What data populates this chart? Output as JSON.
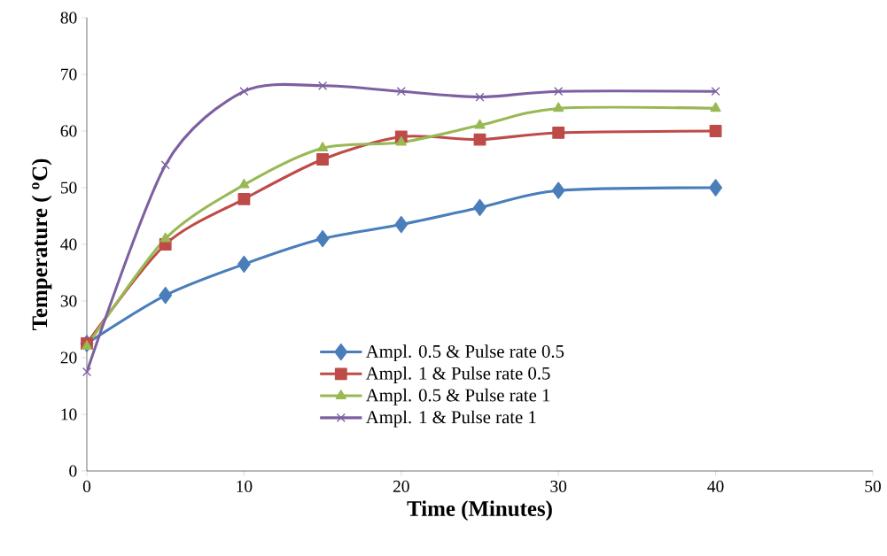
{
  "chart_data": {
    "type": "line",
    "xlabel": "Time (Minutes)",
    "ylabel": "Temperature ( $^{o}$C)",
    "x": [
      0,
      5,
      10,
      15,
      20,
      25,
      30,
      40
    ],
    "series": [
      {
        "name": "Ampl. 0.5 & Pulse rate 0.5",
        "color": "#4a7ebb",
        "marker": "diamond",
        "values": [
          22.5,
          31,
          36.5,
          41,
          43.5,
          46.5,
          49.5,
          50
        ]
      },
      {
        "name": "Ampl. 1 & Pulse rate 0.5",
        "color": "#be4b48",
        "marker": "square",
        "values": [
          22.5,
          40,
          48,
          55,
          59,
          58.5,
          59.7,
          60
        ]
      },
      {
        "name": "Ampl. 0.5 & Pulse rate 1",
        "color": "#98b954",
        "marker": "triangle",
        "values": [
          22,
          41,
          50.5,
          57,
          58,
          61,
          64,
          64
        ]
      },
      {
        "name": "Ampl. 1 & Pulse rate 1",
        "color": "#7d60a0",
        "marker": "cross",
        "values": [
          17.5,
          54,
          67,
          68,
          67,
          66,
          67,
          67
        ]
      }
    ],
    "xlim": [
      0,
      50
    ],
    "ylim": [
      0,
      80
    ],
    "xticks": [
      0,
      10,
      20,
      30,
      40,
      50
    ],
    "yticks": [
      0,
      10,
      20,
      30,
      40,
      50,
      60,
      70,
      80
    ],
    "legend": "bottom",
    "grid": false
  }
}
